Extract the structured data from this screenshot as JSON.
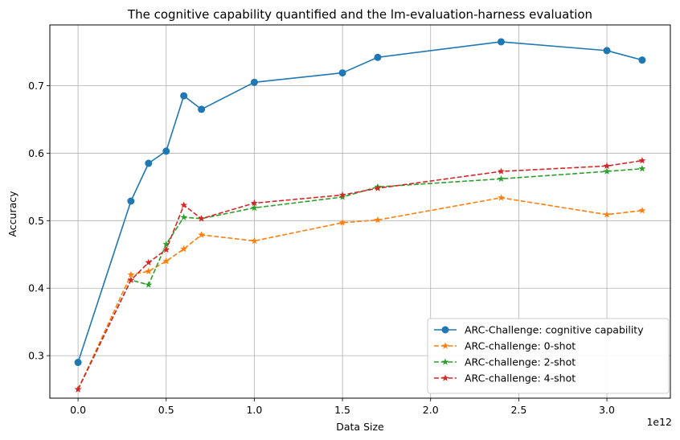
{
  "chart_data": {
    "type": "line",
    "title": "The cognitive capability quantified and the lm-evaluation-harness evaluation",
    "xlabel": "Data Size",
    "ylabel": "Accuracy",
    "x_offset_text": "1e12",
    "x_ticks": [
      0.0,
      0.5,
      1.0,
      1.5,
      2.0,
      2.5,
      3.0
    ],
    "x_tick_labels": [
      "0.0",
      "0.5",
      "1.0",
      "1.5",
      "2.0",
      "2.5",
      "3.0"
    ],
    "y_ticks": [
      0.3,
      0.4,
      0.5,
      0.6,
      0.7
    ],
    "y_tick_labels": [
      "0.3",
      "0.4",
      "0.5",
      "0.6",
      "0.7"
    ],
    "xlim": [
      -0.16,
      3.36
    ],
    "ylim": [
      0.237,
      0.79
    ],
    "grid": true,
    "legend_position": "lower-right",
    "x": [
      0.0,
      0.3,
      0.4,
      0.5,
      0.6,
      0.7,
      1.0,
      1.5,
      1.7,
      2.4,
      3.0,
      3.2
    ],
    "series": [
      {
        "name": "ARC-Challenge: cognitive capability",
        "color": "#1f77b4",
        "line_style": "solid",
        "marker": "circle",
        "values": [
          0.29,
          0.529,
          0.585,
          0.603,
          0.685,
          0.665,
          0.705,
          0.719,
          0.742,
          0.765,
          0.752,
          0.738
        ]
      },
      {
        "name": "ARC-challenge: 0-shot",
        "color": "#ff7f0e",
        "line_style": "dashed",
        "marker": "star",
        "values": [
          0.25,
          0.42,
          0.425,
          0.44,
          0.458,
          0.479,
          0.47,
          0.497,
          0.501,
          0.534,
          0.509,
          0.515
        ]
      },
      {
        "name": "ARC-challenge: 2-shot",
        "color": "#2ca02c",
        "line_style": "dashed",
        "marker": "star",
        "values": [
          0.25,
          0.412,
          0.405,
          0.465,
          0.505,
          0.503,
          0.519,
          0.535,
          0.55,
          0.562,
          0.573,
          0.577
        ]
      },
      {
        "name": "ARC-challenge: 4-shot",
        "color": "#d62728",
        "line_style": "dashed",
        "marker": "star",
        "values": [
          0.25,
          0.412,
          0.438,
          0.457,
          0.523,
          0.503,
          0.526,
          0.538,
          0.548,
          0.573,
          0.581,
          0.589
        ]
      }
    ]
  }
}
